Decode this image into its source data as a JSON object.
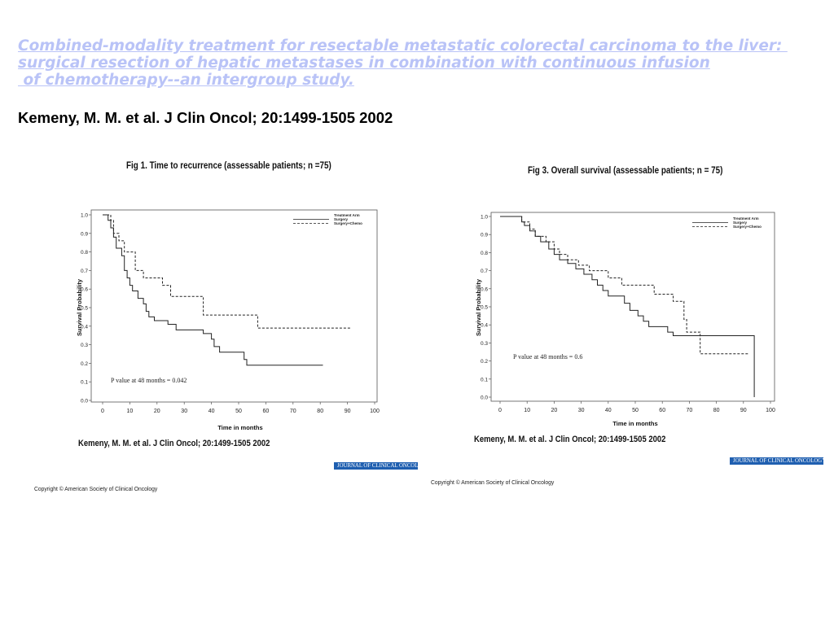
{
  "header": {
    "title_lines": [
      "Combined-modality treatment for resectable metastatic colorectal carcinoma to the liver: ",
      "surgical resection of hepatic metastases in combination with continuous infusion",
      " of chemotherapy--an intergroup study."
    ],
    "citation": "Kemeny, M. M. et al. J Clin Oncol; 20:1499-1505 2002"
  },
  "figures": [
    {
      "title": "Fig 1. Time to recurrence (assessable patients; n =75)",
      "citation": "Kemeny, M. M. et al. J Clin Oncol; 20:1499-1505 2002",
      "copyright": "Copyright © American Society of Clinical Oncology",
      "journal_badge": "JOURNAL OF CLINICAL ONCOLOGY"
    },
    {
      "title": "Fig 3. Overall survival (assessable patients; n = 75)",
      "citation": "Kemeny, M. M. et al. J Clin Oncol; 20:1499-1505 2002",
      "copyright": "Copyright © American Society of Clinical Oncology",
      "journal_badge": "JOURNAL OF CLINICAL ONCOLOGY"
    }
  ],
  "chart_data": [
    {
      "type": "line",
      "subtype": "kaplan-meier step",
      "title": "Fig 1. Time to recurrence (assessable patients; n =75)",
      "xlabel": "Time in months",
      "ylabel": "Survival Probability",
      "xlim": [
        0,
        100
      ],
      "ylim": [
        0,
        1.0
      ],
      "xticks": [
        "0",
        "10",
        "20",
        "30",
        "40",
        "50",
        "60",
        "70",
        "80",
        "90",
        "100"
      ],
      "yticks": [
        "0.0",
        "0.1",
        "0.2",
        "0.3",
        "0.4",
        "0.5",
        "0.6",
        "0.7",
        "0.8",
        "0.9",
        "1.0"
      ],
      "legend_title": "Treatment Arm",
      "legend_position": "top-right",
      "annotation": "P value at 48 months = 0.042",
      "series": [
        {
          "name": "Surgery",
          "style": "solid",
          "points": [
            [
              0,
              1.0
            ],
            [
              2,
              1.0
            ],
            [
              2,
              0.97
            ],
            [
              3,
              0.97
            ],
            [
              3,
              0.93
            ],
            [
              4,
              0.93
            ],
            [
              4,
              0.88
            ],
            [
              5,
              0.88
            ],
            [
              5,
              0.82
            ],
            [
              7,
              0.82
            ],
            [
              7,
              0.78
            ],
            [
              8,
              0.78
            ],
            [
              8,
              0.7
            ],
            [
              9,
              0.7
            ],
            [
              9,
              0.66
            ],
            [
              10,
              0.66
            ],
            [
              10,
              0.62
            ],
            [
              11,
              0.62
            ],
            [
              11,
              0.59
            ],
            [
              13,
              0.59
            ],
            [
              13,
              0.55
            ],
            [
              15,
              0.55
            ],
            [
              15,
              0.52
            ],
            [
              16,
              0.52
            ],
            [
              16,
              0.48
            ],
            [
              17,
              0.48
            ],
            [
              17,
              0.45
            ],
            [
              19,
              0.45
            ],
            [
              19,
              0.43
            ],
            [
              24,
              0.43
            ],
            [
              24,
              0.41
            ],
            [
              27,
              0.41
            ],
            [
              27,
              0.38
            ],
            [
              37,
              0.38
            ],
            [
              37,
              0.36
            ],
            [
              40,
              0.36
            ],
            [
              40,
              0.33
            ],
            [
              41,
              0.33
            ],
            [
              41,
              0.29
            ],
            [
              43,
              0.29
            ],
            [
              43,
              0.26
            ],
            [
              52,
              0.26
            ],
            [
              52,
              0.22
            ],
            [
              53,
              0.22
            ],
            [
              53,
              0.19
            ],
            [
              81,
              0.19
            ]
          ]
        },
        {
          "name": "Surgery+Chemo",
          "style": "dashed",
          "points": [
            [
              0,
              1.0
            ],
            [
              3,
              1.0
            ],
            [
              3,
              0.97
            ],
            [
              4,
              0.97
            ],
            [
              4,
              0.9
            ],
            [
              6,
              0.9
            ],
            [
              6,
              0.86
            ],
            [
              8,
              0.86
            ],
            [
              8,
              0.8
            ],
            [
              12,
              0.8
            ],
            [
              12,
              0.7
            ],
            [
              15,
              0.7
            ],
            [
              15,
              0.66
            ],
            [
              22,
              0.66
            ],
            [
              22,
              0.62
            ],
            [
              25,
              0.62
            ],
            [
              25,
              0.56
            ],
            [
              37,
              0.56
            ],
            [
              37,
              0.46
            ],
            [
              57,
              0.46
            ],
            [
              57,
              0.39
            ],
            [
              91,
              0.39
            ]
          ]
        }
      ]
    },
    {
      "type": "line",
      "subtype": "kaplan-meier step",
      "title": "Fig 3. Overall survival (assessable patients; n = 75)",
      "xlabel": "Time in months",
      "ylabel": "Survival Probability",
      "xlim": [
        0,
        100
      ],
      "ylim": [
        0,
        1.0
      ],
      "xticks": [
        "0",
        "10",
        "20",
        "30",
        "40",
        "50",
        "60",
        "70",
        "80",
        "90",
        "100"
      ],
      "yticks": [
        "0.0",
        "0.1",
        "0.2",
        "0.3",
        "0.4",
        "0.5",
        "0.6",
        "0.7",
        "0.8",
        "0.9",
        "1.0"
      ],
      "legend_title": "Treatment Arm",
      "legend_position": "top-right",
      "annotation": "P value at 48 months = 0.6",
      "series": [
        {
          "name": "Surgery",
          "style": "solid",
          "points": [
            [
              0,
              1.0
            ],
            [
              8,
              1.0
            ],
            [
              8,
              0.97
            ],
            [
              9,
              0.97
            ],
            [
              9,
              0.95
            ],
            [
              11,
              0.95
            ],
            [
              11,
              0.92
            ],
            [
              13,
              0.92
            ],
            [
              13,
              0.89
            ],
            [
              15,
              0.89
            ],
            [
              15,
              0.86
            ],
            [
              18,
              0.86
            ],
            [
              18,
              0.82
            ],
            [
              20,
              0.82
            ],
            [
              20,
              0.79
            ],
            [
              22,
              0.79
            ],
            [
              22,
              0.76
            ],
            [
              25,
              0.76
            ],
            [
              25,
              0.74
            ],
            [
              28,
              0.74
            ],
            [
              28,
              0.71
            ],
            [
              31,
              0.71
            ],
            [
              31,
              0.68
            ],
            [
              34,
              0.68
            ],
            [
              34,
              0.65
            ],
            [
              36,
              0.65
            ],
            [
              36,
              0.62
            ],
            [
              38,
              0.62
            ],
            [
              38,
              0.59
            ],
            [
              40,
              0.59
            ],
            [
              40,
              0.56
            ],
            [
              46,
              0.56
            ],
            [
              46,
              0.52
            ],
            [
              48,
              0.52
            ],
            [
              48,
              0.48
            ],
            [
              51,
              0.48
            ],
            [
              51,
              0.45
            ],
            [
              53,
              0.45
            ],
            [
              53,
              0.42
            ],
            [
              55,
              0.42
            ],
            [
              55,
              0.39
            ],
            [
              62,
              0.39
            ],
            [
              62,
              0.36
            ],
            [
              64,
              0.36
            ],
            [
              64,
              0.34
            ],
            [
              94,
              0.34
            ],
            [
              94,
              0.0
            ]
          ]
        },
        {
          "name": "Surgery+Chemo",
          "style": "dashed",
          "points": [
            [
              0,
              1.0
            ],
            [
              8,
              1.0
            ],
            [
              8,
              0.97
            ],
            [
              11,
              0.97
            ],
            [
              11,
              0.93
            ],
            [
              13,
              0.93
            ],
            [
              13,
              0.89
            ],
            [
              17,
              0.89
            ],
            [
              17,
              0.86
            ],
            [
              20,
              0.86
            ],
            [
              20,
              0.82
            ],
            [
              22,
              0.82
            ],
            [
              22,
              0.79
            ],
            [
              25,
              0.79
            ],
            [
              25,
              0.76
            ],
            [
              29,
              0.76
            ],
            [
              29,
              0.73
            ],
            [
              33,
              0.73
            ],
            [
              33,
              0.7
            ],
            [
              40,
              0.7
            ],
            [
              40,
              0.66
            ],
            [
              45,
              0.66
            ],
            [
              45,
              0.62
            ],
            [
              57,
              0.62
            ],
            [
              57,
              0.57
            ],
            [
              64,
              0.57
            ],
            [
              64,
              0.53
            ],
            [
              68,
              0.53
            ],
            [
              68,
              0.43
            ],
            [
              69,
              0.43
            ],
            [
              69,
              0.36
            ],
            [
              74,
              0.36
            ],
            [
              74,
              0.24
            ],
            [
              92,
              0.24
            ]
          ]
        }
      ]
    }
  ]
}
